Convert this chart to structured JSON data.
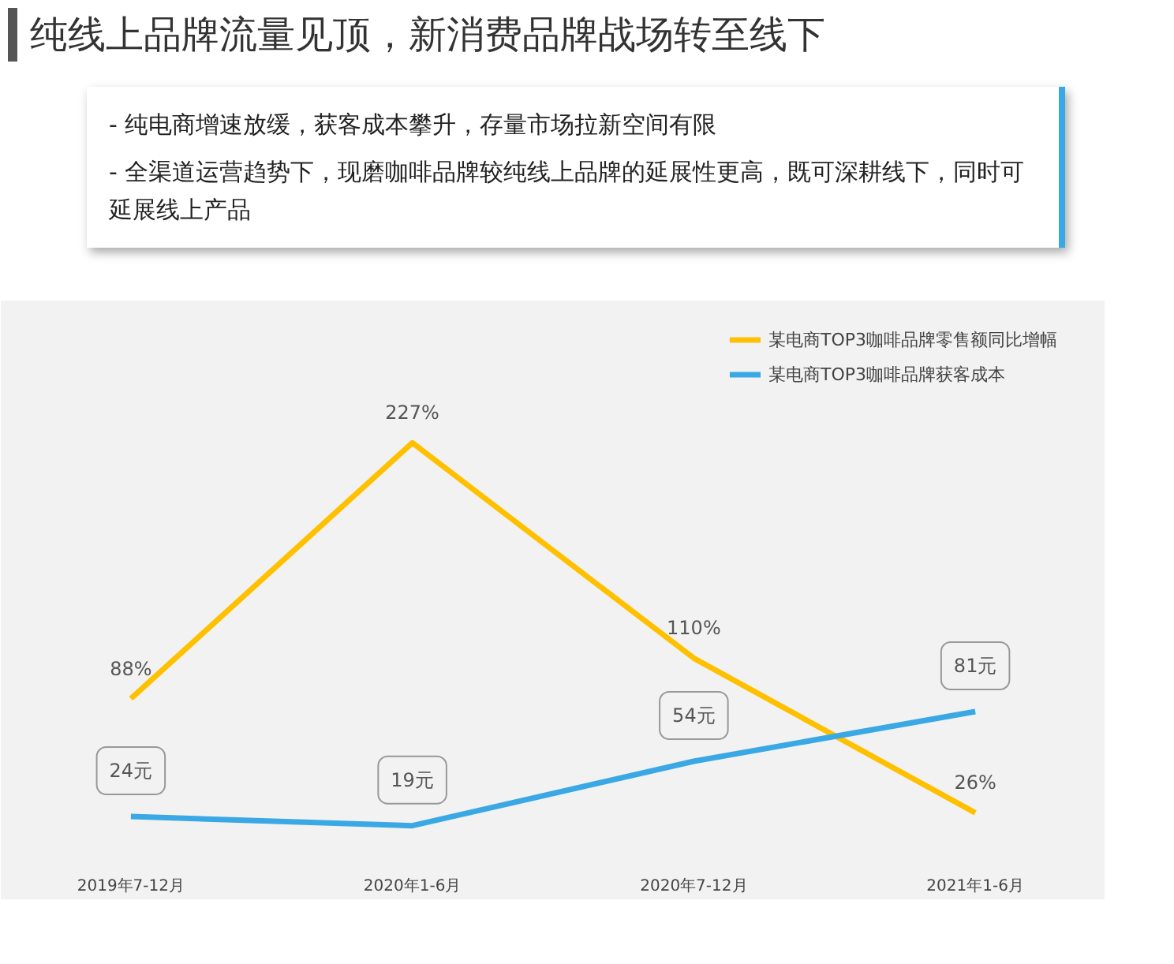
{
  "chart_data": {
    "type": "line",
    "title": "纯线上品牌流量见顶，新消费品牌战场转至线下",
    "annotations": [
      "-  纯电商增速放缓，获客成本攀升，存量市场拉新空间有限",
      "-  全渠道运营趋势下，现磨咖啡品牌较纯线上品牌的延展性更高，既可深耕线下，同时可延展线上产品"
    ],
    "categories": [
      "2019年7-12月",
      "2020年1-6月",
      "2020年7-12月",
      "2021年1-6月"
    ],
    "series": [
      {
        "name": "某电商TOP3咖啡品牌零售额同比增幅",
        "color": "#ffc000",
        "values": [
          88,
          227,
          110,
          26
        ],
        "value_labels": [
          "88%",
          "227%",
          "110%",
          "26%"
        ]
      },
      {
        "name": "某电商TOP3咖啡品牌获客成本",
        "color": "#3aa8e4",
        "values": [
          24,
          19,
          54,
          81
        ],
        "value_labels": [
          "24元",
          "19元",
          "54元",
          "81元"
        ]
      }
    ],
    "ylim": [
      0,
      300
    ],
    "tick_labels": "x",
    "legend": "top right",
    "grid": false,
    "marker": "none",
    "line_style": "solid"
  }
}
